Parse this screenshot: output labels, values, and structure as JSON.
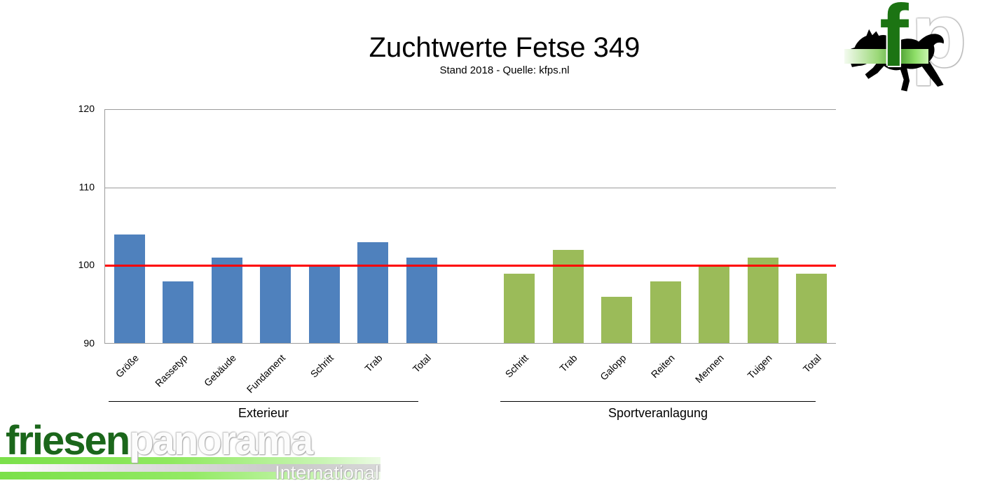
{
  "title": "Zuchtwerte Fetse 349",
  "subtitle": "Stand 2018 - Quelle: kfps.nl",
  "branding": {
    "corner_logo": {
      "f": "f",
      "p": "p",
      "horse_icon": "black-friesian-horse-silhouette"
    },
    "footer_logo": {
      "part1": "friesen",
      "part2": "panorama",
      "tagline": "International"
    }
  },
  "chart_data": {
    "type": "bar",
    "title": "Zuchtwerte Fetse 349",
    "subtitle": "Stand 2018 - Quelle: kfps.nl",
    "ylim": [
      90,
      120
    ],
    "yticks": [
      90,
      100,
      110,
      120
    ],
    "grid": "horizontal-gray",
    "legend": "none",
    "reference_line": {
      "value": 100,
      "color": "#FF0000"
    },
    "groups": [
      {
        "name": "Exterieur",
        "color": "#4F81BD",
        "categories": [
          "Größe",
          "Rassetyp",
          "Gebäude",
          "Fundament",
          "Schritt",
          "Trab",
          "Total"
        ],
        "values": [
          104,
          98,
          101,
          100,
          100,
          103,
          101
        ]
      },
      {
        "name": "Sportveranlagung",
        "color": "#9BBB59",
        "categories": [
          "Schritt",
          "Trab",
          "Galopp",
          "Reiten",
          "Mennen",
          "Tuigen",
          "Total"
        ],
        "values": [
          99,
          102,
          96,
          98,
          100,
          101,
          99
        ]
      }
    ]
  }
}
